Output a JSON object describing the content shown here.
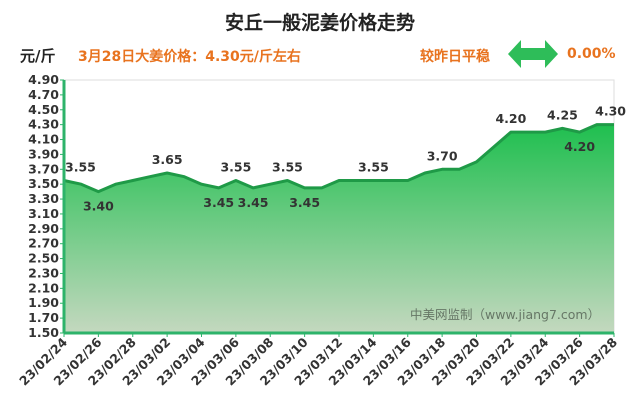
{
  "header": {
    "title": "安丘一般泥姜价格走势",
    "unit": "元/斤",
    "today_text": "3月28日大姜价格：4.30元/斤左右",
    "compare_label": "较昨日平稳",
    "compare_value": "0.00%",
    "arrow_icon": "double-arrow-icon",
    "arrow_color": "#2ebd59"
  },
  "chart_data": {
    "type": "area",
    "watermark": "中美网监制（www.jiang7.com）",
    "x_ticks": [
      "23/02/24",
      "23/02/26",
      "23/02/28",
      "23/03/02",
      "23/03/04",
      "23/03/06",
      "23/03/08",
      "23/03/10",
      "23/03/12",
      "23/03/14",
      "23/03/16",
      "23/03/18",
      "23/03/20",
      "23/03/22",
      "23/03/24",
      "23/03/26",
      "23/03/28"
    ],
    "y_ticks": [
      "1.50",
      "1.70",
      "1.90",
      "2.10",
      "2.30",
      "2.50",
      "2.70",
      "2.90",
      "3.10",
      "3.30",
      "3.50",
      "3.70",
      "3.90",
      "4.10",
      "4.30",
      "4.50",
      "4.70",
      "4.90"
    ],
    "ylim": [
      1.5,
      4.9
    ],
    "series": [
      {
        "x": [
          "23/02/24",
          "23/02/25",
          "23/02/26",
          "23/02/27",
          "23/02/28",
          "23/03/01",
          "23/03/02",
          "23/03/03",
          "23/03/04",
          "23/03/05",
          "23/03/06",
          "23/03/07",
          "23/03/08",
          "23/03/09",
          "23/03/10",
          "23/03/11",
          "23/03/12",
          "23/03/13",
          "23/03/14",
          "23/03/15",
          "23/03/16",
          "23/03/17",
          "23/03/18",
          "23/03/19",
          "23/03/20",
          "23/03/21",
          "23/03/22",
          "23/03/23",
          "23/03/24",
          "23/03/25",
          "23/03/26",
          "23/03/27",
          "23/03/28"
        ],
        "values": [
          3.55,
          3.5,
          3.4,
          3.5,
          3.55,
          3.6,
          3.65,
          3.6,
          3.5,
          3.45,
          3.55,
          3.45,
          3.5,
          3.55,
          3.45,
          3.45,
          3.55,
          3.55,
          3.55,
          3.55,
          3.55,
          3.65,
          3.7,
          3.7,
          3.8,
          4.0,
          4.2,
          4.2,
          4.2,
          4.25,
          4.2,
          4.3,
          4.3
        ]
      }
    ],
    "data_labels": [
      {
        "text": "3.55",
        "x": "23/02/24",
        "y": 3.55,
        "pos": "above"
      },
      {
        "text": "3.40",
        "x": "23/02/26",
        "y": 3.4,
        "pos": "below"
      },
      {
        "text": "3.65",
        "x": "23/03/02",
        "y": 3.65,
        "pos": "above"
      },
      {
        "text": "3.45",
        "x": "23/03/05",
        "y": 3.45,
        "pos": "below"
      },
      {
        "text": "3.55",
        "x": "23/03/06",
        "y": 3.55,
        "pos": "above"
      },
      {
        "text": "3.45",
        "x": "23/03/07",
        "y": 3.45,
        "pos": "below"
      },
      {
        "text": "3.55",
        "x": "23/03/09",
        "y": 3.55,
        "pos": "above"
      },
      {
        "text": "3.45",
        "x": "23/03/10",
        "y": 3.45,
        "pos": "below"
      },
      {
        "text": "3.55",
        "x": "23/03/14",
        "y": 3.55,
        "pos": "above"
      },
      {
        "text": "3.70",
        "x": "23/03/18",
        "y": 3.7,
        "pos": "above"
      },
      {
        "text": "4.20",
        "x": "23/03/22",
        "y": 4.2,
        "pos": "above"
      },
      {
        "text": "4.25",
        "x": "23/03/25",
        "y": 4.25,
        "pos": "above"
      },
      {
        "text": "4.20",
        "x": "23/03/26",
        "y": 4.2,
        "pos": "below"
      },
      {
        "text": "4.30",
        "x": "23/03/28",
        "y": 4.3,
        "pos": "above"
      }
    ],
    "colors": {
      "line": "#1f9a47",
      "fill_top": "#1fbf4f",
      "fill_bottom": "#c4d8bf",
      "axis": "#2db36a",
      "label": "#333333"
    }
  }
}
